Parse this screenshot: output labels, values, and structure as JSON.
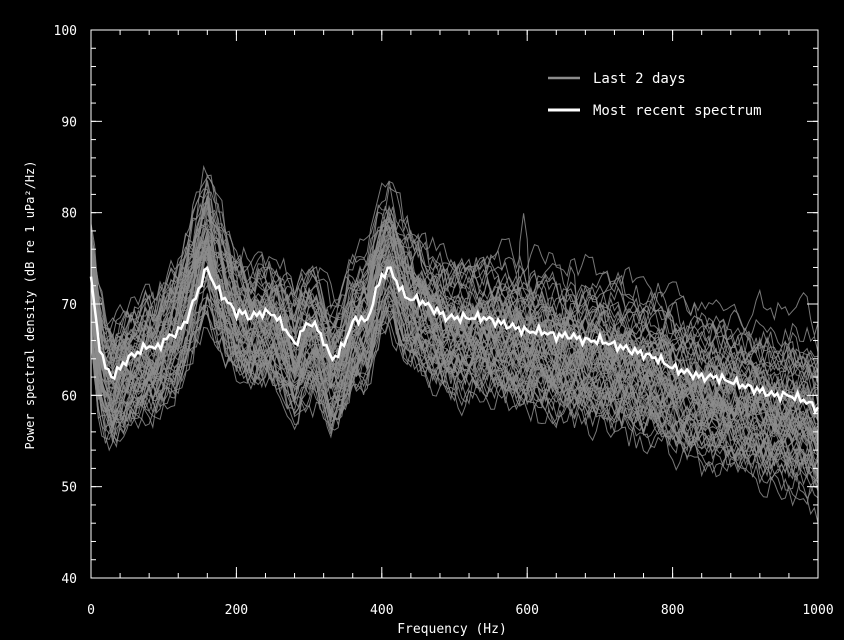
{
  "chart_data": {
    "type": "line",
    "xlabel": "Frequency (Hz)",
    "ylabel": "Power spectral density (dB re 1 uPa²/Hz)",
    "xlim": [
      0,
      1000
    ],
    "ylim": [
      40,
      100
    ],
    "x_ticks": [
      "0",
      "200",
      "400",
      "600",
      "800",
      "1000"
    ],
    "y_ticks": [
      "40",
      "50",
      "60",
      "70",
      "80",
      "90",
      "100"
    ],
    "grid": false,
    "legend_position": "top-right",
    "legend": [
      "Last 2 days",
      "Most recent spectrum"
    ],
    "colors": {
      "background": "#000000",
      "history": "#8c8c8c",
      "recent": "#ffffff",
      "axis": "#ffffff"
    },
    "series": [
      {
        "name": "Most recent spectrum",
        "x": [
          0,
          10,
          20,
          30,
          40,
          50,
          60,
          70,
          80,
          90,
          100,
          110,
          120,
          130,
          140,
          150,
          160,
          170,
          180,
          190,
          200,
          210,
          220,
          230,
          240,
          250,
          260,
          270,
          280,
          290,
          300,
          310,
          320,
          330,
          340,
          350,
          360,
          370,
          380,
          390,
          400,
          410,
          420,
          430,
          440,
          450,
          460,
          470,
          480,
          490,
          500,
          520,
          540,
          560,
          580,
          600,
          620,
          640,
          660,
          680,
          700,
          720,
          740,
          760,
          780,
          800,
          820,
          840,
          860,
          880,
          900,
          920,
          940,
          960,
          980,
          1000
        ],
        "y": [
          73,
          66,
          63,
          62,
          63,
          64,
          64.5,
          65,
          65.5,
          65,
          66,
          66.5,
          67,
          68,
          70,
          72,
          74,
          72,
          71,
          70,
          69,
          69,
          68.5,
          69,
          69,
          69,
          68,
          67,
          65.5,
          67,
          68,
          67.5,
          66,
          64,
          64.5,
          66,
          68,
          68.5,
          68,
          71,
          73,
          74,
          72.5,
          71,
          70.5,
          70.5,
          70,
          69.5,
          69,
          68.5,
          68.5,
          68.5,
          68.5,
          68,
          67.5,
          67,
          67,
          66.5,
          66.5,
          66,
          66,
          65.5,
          65,
          64.5,
          64,
          63,
          62.5,
          62,
          62,
          61.5,
          61,
          60.5,
          60,
          60,
          59.5,
          58.5
        ]
      }
    ]
  }
}
